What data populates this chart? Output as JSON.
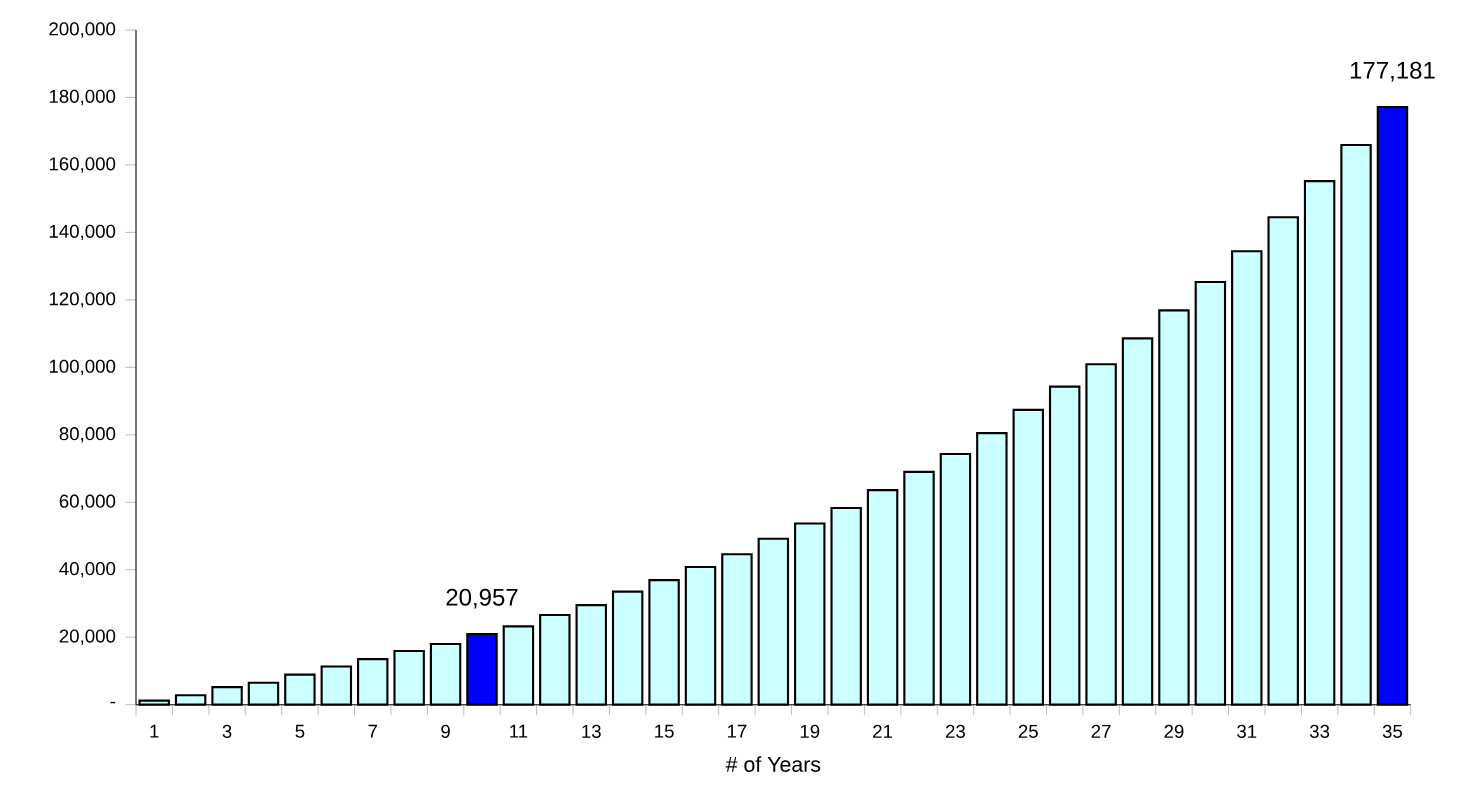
{
  "chart_data": {
    "type": "bar",
    "xlabel": "# of Years",
    "categories": [
      "1",
      null,
      "3",
      null,
      "5",
      null,
      "7",
      null,
      "9",
      null,
      "11",
      null,
      "13",
      null,
      "15",
      null,
      "17",
      null,
      "19",
      null,
      "21",
      null,
      "23",
      null,
      "25",
      null,
      "27",
      null,
      "29",
      null,
      "31",
      null,
      "33",
      null,
      "35"
    ],
    "values": [
      1200,
      2800,
      5200,
      6500,
      8900,
      11300,
      13500,
      15900,
      18000,
      20957,
      23200,
      26600,
      29500,
      33500,
      36900,
      40800,
      44600,
      49200,
      53700,
      58300,
      63600,
      69000,
      74300,
      80500,
      87400,
      94300,
      100900,
      108600,
      116900,
      125300,
      134400,
      144500,
      155200,
      165900,
      177181
    ],
    "colors": [
      "#ccffff",
      "#ccffff",
      "#ccffff",
      "#ccffff",
      "#ccffff",
      "#ccffff",
      "#ccffff",
      "#ccffff",
      "#ccffff",
      "#0000ff",
      "#ccffff",
      "#ccffff",
      "#ccffff",
      "#ccffff",
      "#ccffff",
      "#ccffff",
      "#ccffff",
      "#ccffff",
      "#ccffff",
      "#ccffff",
      "#ccffff",
      "#ccffff",
      "#ccffff",
      "#ccffff",
      "#ccffff",
      "#ccffff",
      "#ccffff",
      "#ccffff",
      "#ccffff",
      "#ccffff",
      "#ccffff",
      "#ccffff",
      "#ccffff",
      "#ccffff",
      "#0000ff"
    ],
    "value_labels": [
      null,
      null,
      null,
      null,
      null,
      null,
      null,
      null,
      null,
      "20,957",
      null,
      null,
      null,
      null,
      null,
      null,
      null,
      null,
      null,
      null,
      null,
      null,
      null,
      null,
      null,
      null,
      null,
      null,
      null,
      null,
      null,
      null,
      null,
      null,
      "177,181"
    ],
    "ylim": [
      0,
      200000
    ],
    "yticks": [
      {
        "value": 0,
        "label": "-"
      },
      {
        "value": 20000,
        "label": "20,000"
      },
      {
        "value": 40000,
        "label": "40,000"
      },
      {
        "value": 60000,
        "label": "60,000"
      },
      {
        "value": 80000,
        "label": "80,000"
      },
      {
        "value": 100000,
        "label": "100,000"
      },
      {
        "value": 120000,
        "label": "120,000"
      },
      {
        "value": 140000,
        "label": "140,000"
      },
      {
        "value": 160000,
        "label": "160,000"
      },
      {
        "value": 180000,
        "label": "180,000"
      },
      {
        "value": 200000,
        "label": "200,000"
      }
    ],
    "grid": false
  }
}
